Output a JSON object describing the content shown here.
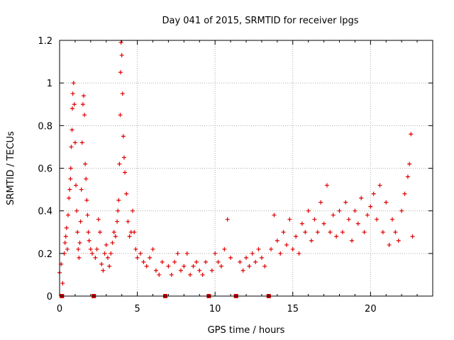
{
  "chart_data": {
    "type": "scatter",
    "title": "Day 041 of 2015, SRMTID for receiver lpgs",
    "xlabel": "GPS time / hours",
    "ylabel": "SRMTID / TECUs",
    "xlim": [
      0,
      24
    ],
    "ylim": [
      0,
      1.2
    ],
    "x_ticks": [
      0,
      5,
      10,
      15,
      20
    ],
    "x_tick_labels": [
      "0",
      "5",
      "10",
      "15",
      "20"
    ],
    "y_ticks": [
      0,
      0.2,
      0.4,
      0.6,
      0.8,
      1,
      1.2
    ],
    "y_tick_labels": [
      "0",
      "0.2",
      "0.4",
      "0.6",
      "0.8",
      "1",
      "1.2"
    ],
    "grid": true,
    "marker": "plus",
    "color": "#e00000",
    "outage_color": "#cc0000",
    "data_gaps_hours": [
      0.15,
      2.2,
      6.8,
      9.6,
      11.35,
      13.45
    ],
    "series": [
      {
        "name": "SRMTID",
        "points": [
          [
            0.0,
            0.11
          ],
          [
            0.1,
            0.15
          ],
          [
            0.2,
            0.06
          ],
          [
            0.3,
            0.2
          ],
          [
            0.35,
            0.25
          ],
          [
            0.4,
            0.28
          ],
          [
            0.45,
            0.32
          ],
          [
            0.5,
            0.22
          ],
          [
            0.55,
            0.38
          ],
          [
            0.6,
            0.46
          ],
          [
            0.65,
            0.5
          ],
          [
            0.7,
            0.55
          ],
          [
            0.72,
            0.6
          ],
          [
            0.75,
            0.7
          ],
          [
            0.8,
            0.78
          ],
          [
            0.82,
            0.88
          ],
          [
            0.85,
            0.95
          ],
          [
            0.9,
            1.0
          ],
          [
            0.95,
            0.9
          ],
          [
            1.0,
            0.72
          ],
          [
            1.05,
            0.52
          ],
          [
            1.1,
            0.4
          ],
          [
            1.15,
            0.3
          ],
          [
            1.2,
            0.22
          ],
          [
            1.25,
            0.18
          ],
          [
            1.3,
            0.25
          ],
          [
            1.35,
            0.35
          ],
          [
            1.4,
            0.5
          ],
          [
            1.45,
            0.72
          ],
          [
            1.5,
            0.9
          ],
          [
            1.55,
            0.94
          ],
          [
            1.6,
            0.85
          ],
          [
            1.65,
            0.62
          ],
          [
            1.7,
            0.55
          ],
          [
            1.75,
            0.45
          ],
          [
            1.8,
            0.38
          ],
          [
            1.85,
            0.3
          ],
          [
            1.9,
            0.26
          ],
          [
            2.0,
            0.22
          ],
          [
            2.1,
            0.2
          ],
          [
            2.3,
            0.18
          ],
          [
            2.4,
            0.22
          ],
          [
            2.5,
            0.36
          ],
          [
            2.6,
            0.3
          ],
          [
            2.7,
            0.15
          ],
          [
            2.8,
            0.12
          ],
          [
            2.9,
            0.2
          ],
          [
            3.0,
            0.24
          ],
          [
            3.1,
            0.18
          ],
          [
            3.2,
            0.14
          ],
          [
            3.3,
            0.2
          ],
          [
            3.4,
            0.25
          ],
          [
            3.5,
            0.3
          ],
          [
            3.6,
            0.28
          ],
          [
            3.7,
            0.35
          ],
          [
            3.75,
            0.4
          ],
          [
            3.8,
            0.45
          ],
          [
            3.85,
            0.62
          ],
          [
            3.9,
            0.85
          ],
          [
            3.92,
            1.05
          ],
          [
            3.95,
            1.19
          ],
          [
            4.0,
            1.13
          ],
          [
            4.05,
            0.95
          ],
          [
            4.1,
            0.75
          ],
          [
            4.15,
            0.65
          ],
          [
            4.2,
            0.58
          ],
          [
            4.3,
            0.48
          ],
          [
            4.4,
            0.35
          ],
          [
            4.5,
            0.28
          ],
          [
            4.6,
            0.3
          ],
          [
            4.7,
            0.4
          ],
          [
            4.8,
            0.3
          ],
          [
            4.9,
            0.22
          ],
          [
            5.0,
            0.18
          ],
          [
            5.2,
            0.2
          ],
          [
            5.4,
            0.16
          ],
          [
            5.6,
            0.14
          ],
          [
            5.8,
            0.18
          ],
          [
            6.0,
            0.22
          ],
          [
            6.2,
            0.12
          ],
          [
            6.4,
            0.1
          ],
          [
            6.6,
            0.16
          ],
          [
            7.0,
            0.14
          ],
          [
            7.2,
            0.1
          ],
          [
            7.4,
            0.16
          ],
          [
            7.6,
            0.2
          ],
          [
            7.8,
            0.12
          ],
          [
            8.0,
            0.14
          ],
          [
            8.2,
            0.2
          ],
          [
            8.4,
            0.1
          ],
          [
            8.6,
            0.14
          ],
          [
            8.8,
            0.16
          ],
          [
            9.0,
            0.12
          ],
          [
            9.2,
            0.1
          ],
          [
            9.4,
            0.16
          ],
          [
            9.8,
            0.12
          ],
          [
            10.0,
            0.2
          ],
          [
            10.2,
            0.16
          ],
          [
            10.4,
            0.14
          ],
          [
            10.6,
            0.22
          ],
          [
            10.8,
            0.36
          ],
          [
            11.0,
            0.18
          ],
          [
            11.6,
            0.16
          ],
          [
            11.8,
            0.12
          ],
          [
            12.0,
            0.18
          ],
          [
            12.2,
            0.14
          ],
          [
            12.4,
            0.2
          ],
          [
            12.6,
            0.16
          ],
          [
            12.8,
            0.22
          ],
          [
            13.0,
            0.18
          ],
          [
            13.2,
            0.14
          ],
          [
            13.6,
            0.22
          ],
          [
            13.8,
            0.38
          ],
          [
            14.0,
            0.26
          ],
          [
            14.2,
            0.2
          ],
          [
            14.4,
            0.3
          ],
          [
            14.6,
            0.24
          ],
          [
            14.8,
            0.36
          ],
          [
            15.0,
            0.22
          ],
          [
            15.2,
            0.28
          ],
          [
            15.4,
            0.2
          ],
          [
            15.6,
            0.34
          ],
          [
            15.8,
            0.3
          ],
          [
            16.0,
            0.4
          ],
          [
            16.2,
            0.26
          ],
          [
            16.4,
            0.36
          ],
          [
            16.6,
            0.3
          ],
          [
            16.8,
            0.44
          ],
          [
            17.0,
            0.34
          ],
          [
            17.2,
            0.52
          ],
          [
            17.4,
            0.3
          ],
          [
            17.6,
            0.38
          ],
          [
            17.8,
            0.28
          ],
          [
            18.0,
            0.4
          ],
          [
            18.2,
            0.3
          ],
          [
            18.4,
            0.44
          ],
          [
            18.6,
            0.36
          ],
          [
            18.8,
            0.26
          ],
          [
            19.0,
            0.4
          ],
          [
            19.2,
            0.34
          ],
          [
            19.4,
            0.46
          ],
          [
            19.6,
            0.3
          ],
          [
            19.8,
            0.38
          ],
          [
            20.0,
            0.42
          ],
          [
            20.2,
            0.48
          ],
          [
            20.4,
            0.36
          ],
          [
            20.6,
            0.52
          ],
          [
            20.8,
            0.3
          ],
          [
            21.0,
            0.44
          ],
          [
            21.2,
            0.24
          ],
          [
            21.4,
            0.36
          ],
          [
            21.6,
            0.3
          ],
          [
            21.8,
            0.26
          ],
          [
            22.0,
            0.4
          ],
          [
            22.2,
            0.48
          ],
          [
            22.4,
            0.56
          ],
          [
            22.5,
            0.62
          ],
          [
            22.6,
            0.76
          ],
          [
            22.7,
            0.28
          ]
        ]
      }
    ]
  }
}
